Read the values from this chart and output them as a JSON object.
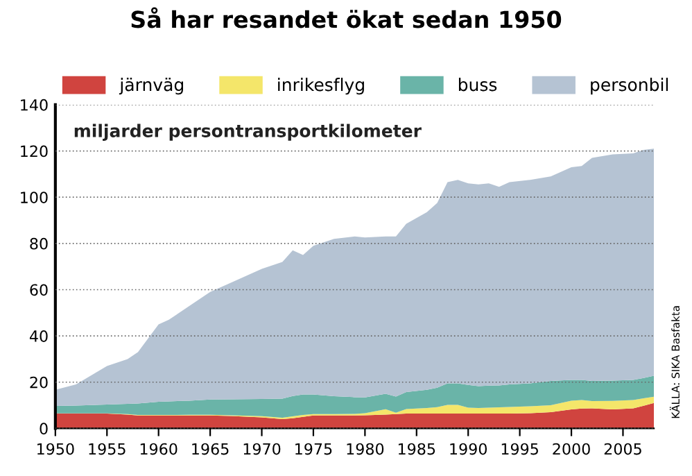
{
  "chart_data": {
    "type": "area",
    "stacked": true,
    "title": "Så har resandet ökat sedan 1950",
    "x": [
      1950,
      1952,
      1955,
      1957,
      1958,
      1960,
      1961,
      1963,
      1965,
      1967,
      1970,
      1972,
      1973,
      1974,
      1975,
      1977,
      1979,
      1980,
      1982,
      1983,
      1984,
      1986,
      1987,
      1988,
      1989,
      1990,
      1991,
      1992,
      1993,
      1994,
      1996,
      1998,
      2000,
      2001,
      2002,
      2004,
      2006,
      2007,
      2008
    ],
    "series": [
      {
        "name": "järnväg",
        "color": "#d0443f",
        "values": [
          6.4,
          6.4,
          6.4,
          6.0,
          5.6,
          5.6,
          5.6,
          5.6,
          5.6,
          5.4,
          4.8,
          4.0,
          4.4,
          5.0,
          5.6,
          5.6,
          5.6,
          5.7,
          6.0,
          6.2,
          6.4,
          6.4,
          6.4,
          6.4,
          6.4,
          6.4,
          6.4,
          6.4,
          6.4,
          6.4,
          6.6,
          7.0,
          8.2,
          8.6,
          8.7,
          8.2,
          8.7,
          9.8,
          11.0
        ]
      },
      {
        "name": "inrikesflyg",
        "color": "#f4e66a",
        "values": [
          0.1,
          0.1,
          0.1,
          0.2,
          0.2,
          0.2,
          0.2,
          0.3,
          0.3,
          0.3,
          0.5,
          0.6,
          0.8,
          0.8,
          0.6,
          0.6,
          0.7,
          0.9,
          2.3,
          0.6,
          2.0,
          2.4,
          2.8,
          3.8,
          3.8,
          2.6,
          2.4,
          2.6,
          2.7,
          2.9,
          3.0,
          3.0,
          3.8,
          3.7,
          3.1,
          3.7,
          3.6,
          3.2,
          2.7
        ]
      },
      {
        "name": "buss",
        "color": "#6ab4a8",
        "values": [
          3.2,
          3.4,
          3.8,
          4.4,
          5.0,
          5.7,
          5.9,
          6.1,
          6.6,
          6.9,
          7.4,
          8.3,
          8.8,
          8.9,
          8.5,
          7.7,
          7.2,
          6.8,
          6.7,
          7.0,
          7.3,
          7.9,
          8.4,
          9.3,
          9.3,
          9.8,
          9.5,
          9.5,
          9.5,
          9.7,
          9.9,
          10.5,
          9.0,
          8.7,
          8.7,
          8.8,
          8.7,
          8.8,
          9.1
        ]
      },
      {
        "name": "personbil",
        "color": "#b5c3d3",
        "values": [
          7.0,
          9.1,
          16.7,
          19.4,
          22.2,
          33.5,
          35.3,
          41.0,
          46.5,
          50.4,
          56.3,
          59.1,
          63.0,
          60.3,
          64.3,
          68.1,
          69.5,
          69.2,
          68.0,
          69.2,
          72.8,
          76.8,
          79.9,
          87.0,
          88.0,
          87.2,
          87.2,
          87.5,
          85.9,
          87.5,
          88.0,
          88.5,
          92.0,
          92.5,
          96.5,
          97.8,
          98.0,
          98.7,
          98.2
        ]
      }
    ],
    "xlim": [
      1950,
      2008
    ],
    "xticks": [
      1950,
      1955,
      1960,
      1965,
      1970,
      1975,
      1980,
      1985,
      1990,
      1995,
      2000,
      2005
    ],
    "ylim": [
      0,
      140
    ],
    "yticks": [
      0,
      20,
      40,
      60,
      80,
      100,
      120,
      140
    ],
    "grid": "y",
    "legend": "top",
    "annotations": [
      "miljarder persontransportkilometer",
      "KÄLLA: SIKA Basfakta"
    ]
  }
}
